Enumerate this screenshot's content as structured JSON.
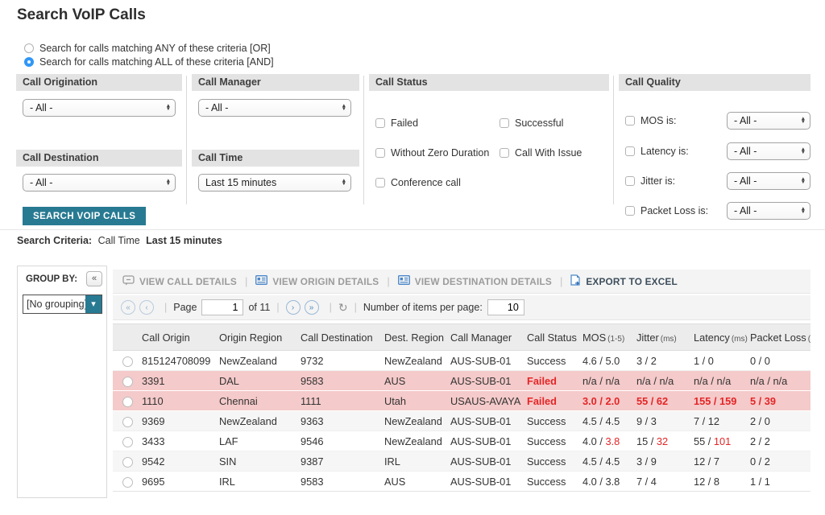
{
  "page": {
    "title": "Search VoIP Calls"
  },
  "colors": {
    "accent_teal": "#287a92",
    "error_red": "#e42527",
    "failed_row_bg": "#f5caca",
    "radio_selected_blue": "#2f97f7"
  },
  "radios": [
    {
      "label": "Search for calls matching ANY of these criteria [OR]",
      "selected": false
    },
    {
      "label": "Search for calls matching ALL of these criteria [AND]",
      "selected": true
    }
  ],
  "filters": {
    "origination": {
      "title": "Call Origination",
      "value": "- All -"
    },
    "manager": {
      "title": "Call Manager",
      "value": "- All -"
    },
    "destination": {
      "title": "Call Destination",
      "value": "- All -"
    },
    "time": {
      "title": "Call Time",
      "value": "Last 15 minutes"
    },
    "status": {
      "title": "Call Status",
      "checkboxes": [
        "Failed",
        "Successful",
        "Without Zero Duration",
        "Call With Issue",
        "Conference call"
      ]
    },
    "quality": {
      "title": "Call Quality",
      "rows": [
        {
          "label": "MOS is:",
          "value": "- All -"
        },
        {
          "label": "Latency is:",
          "value": "- All -"
        },
        {
          "label": "Jitter is:",
          "value": "- All -"
        },
        {
          "label": "Packet Loss is:",
          "value": "- All -"
        }
      ]
    }
  },
  "search_button": "SEARCH VOIP CALLS",
  "criteria": {
    "label": "Search Criteria:",
    "field": "Call Time",
    "value": "Last 15 minutes"
  },
  "sidebar": {
    "group_by": "GROUP BY:",
    "collapse_icon": "«",
    "grouping": "[No grouping]",
    "dd_icon": "▾"
  },
  "toolbar": {
    "buttons": [
      {
        "label": "VIEW CALL DETAILS",
        "icon": "chat-icon",
        "disabled": true
      },
      {
        "label": "VIEW ORIGIN DETAILS",
        "icon": "card-icon",
        "disabled": true
      },
      {
        "label": "VIEW DESTINATION DETAILS",
        "icon": "card-icon",
        "disabled": true
      },
      {
        "label": "EXPORT TO EXCEL",
        "icon": "excel-icon",
        "disabled": false
      }
    ]
  },
  "pagination": {
    "first_icon": "«",
    "prev_icon": "‹",
    "next_icon": "›",
    "last_icon": "»",
    "refresh_icon": "↻",
    "page_label": "Page",
    "page_value": "1",
    "of_label": "of 11",
    "items_label": "Number of items per page:",
    "items_value": "10"
  },
  "table": {
    "headers": [
      {
        "label": "",
        "name": "select"
      },
      {
        "label": "Call Origin",
        "unit": ""
      },
      {
        "label": "Origin Region",
        "unit": ""
      },
      {
        "label": "Call Destination",
        "unit": ""
      },
      {
        "label": "Dest. Region",
        "unit": ""
      },
      {
        "label": "Call Manager",
        "unit": ""
      },
      {
        "label": "Call Status",
        "unit": ""
      },
      {
        "label": "MOS",
        "unit": "(1-5)"
      },
      {
        "label": "Jitter",
        "unit": "(ms)"
      },
      {
        "label": "Latency",
        "unit": "(ms)"
      },
      {
        "label": "Packet Loss",
        "unit": "(%)"
      }
    ],
    "rows": [
      {
        "origin": "815124708099",
        "origin_region": "NewZealand",
        "destination": "9732",
        "dest_region": "NewZealand",
        "manager": "AUS-SUB-01",
        "status": "Success",
        "failed": false,
        "all_red": false,
        "mos": [
          "4.6",
          "5.0"
        ],
        "jitter": [
          "3",
          "2"
        ],
        "latency": [
          "1",
          "0"
        ],
        "packet_loss": [
          "0",
          "0"
        ],
        "red": {
          "mos": [
            false,
            false
          ],
          "jitter": [
            false,
            false
          ],
          "latency": [
            false,
            false
          ],
          "packet_loss": [
            false,
            false
          ]
        }
      },
      {
        "origin": "3391",
        "origin_region": "DAL",
        "destination": "9583",
        "dest_region": "AUS",
        "manager": "AUS-SUB-01",
        "status": "Failed",
        "failed": true,
        "all_red": false,
        "mos": [
          "n/a",
          "n/a"
        ],
        "jitter": [
          "n/a",
          "n/a"
        ],
        "latency": [
          "n/a",
          "n/a"
        ],
        "packet_loss": [
          "n/a",
          "n/a"
        ],
        "red": {
          "mos": [
            false,
            false
          ],
          "jitter": [
            false,
            false
          ],
          "latency": [
            false,
            false
          ],
          "packet_loss": [
            false,
            false
          ]
        }
      },
      {
        "origin": "1110",
        "origin_region": "Chennai",
        "destination": "1111",
        "dest_region": "Utah",
        "manager": "USAUS-AVAYA",
        "status": "Failed",
        "failed": true,
        "all_red": true,
        "mos": [
          "3.0",
          "2.0"
        ],
        "jitter": [
          "55",
          "62"
        ],
        "latency": [
          "155",
          "159"
        ],
        "packet_loss": [
          "5",
          "39"
        ],
        "red": {
          "mos": [
            true,
            true
          ],
          "jitter": [
            true,
            true
          ],
          "latency": [
            true,
            true
          ],
          "packet_loss": [
            true,
            true
          ]
        }
      },
      {
        "origin": "9369",
        "origin_region": "NewZealand",
        "destination": "9363",
        "dest_region": "NewZealand",
        "manager": "AUS-SUB-01",
        "status": "Success",
        "failed": false,
        "all_red": false,
        "mos": [
          "4.5",
          "4.5"
        ],
        "jitter": [
          "9",
          "3"
        ],
        "latency": [
          "7",
          "12"
        ],
        "packet_loss": [
          "2",
          "0"
        ],
        "red": {
          "mos": [
            false,
            false
          ],
          "jitter": [
            false,
            false
          ],
          "latency": [
            false,
            false
          ],
          "packet_loss": [
            false,
            false
          ]
        }
      },
      {
        "origin": "3433",
        "origin_region": "LAF",
        "destination": "9546",
        "dest_region": "NewZealand",
        "manager": "AUS-SUB-01",
        "status": "Success",
        "failed": false,
        "all_red": false,
        "mos": [
          "4.0",
          "3.8"
        ],
        "jitter": [
          "15",
          "32"
        ],
        "latency": [
          "55",
          "101"
        ],
        "packet_loss": [
          "2",
          "2"
        ],
        "red": {
          "mos": [
            false,
            true
          ],
          "jitter": [
            false,
            true
          ],
          "latency": [
            false,
            true
          ],
          "packet_loss": [
            false,
            false
          ]
        }
      },
      {
        "origin": "9542",
        "origin_region": "SIN",
        "destination": "9387",
        "dest_region": "IRL",
        "manager": "AUS-SUB-01",
        "status": "Success",
        "failed": false,
        "all_red": false,
        "mos": [
          "4.5",
          "4.5"
        ],
        "jitter": [
          "3",
          "9"
        ],
        "latency": [
          "12",
          "7"
        ],
        "packet_loss": [
          "0",
          "2"
        ],
        "red": {
          "mos": [
            false,
            false
          ],
          "jitter": [
            false,
            false
          ],
          "latency": [
            false,
            false
          ],
          "packet_loss": [
            false,
            false
          ]
        }
      },
      {
        "origin": "9695",
        "origin_region": "IRL",
        "destination": "9583",
        "dest_region": "AUS",
        "manager": "AUS-SUB-01",
        "status": "Success",
        "failed": false,
        "all_red": false,
        "mos": [
          "4.0",
          "3.8"
        ],
        "jitter": [
          "7",
          "4"
        ],
        "latency": [
          "12",
          "8"
        ],
        "packet_loss": [
          "1",
          "1"
        ],
        "red": {
          "mos": [
            false,
            false
          ],
          "jitter": [
            false,
            false
          ],
          "latency": [
            false,
            false
          ],
          "packet_loss": [
            false,
            false
          ]
        }
      }
    ]
  }
}
